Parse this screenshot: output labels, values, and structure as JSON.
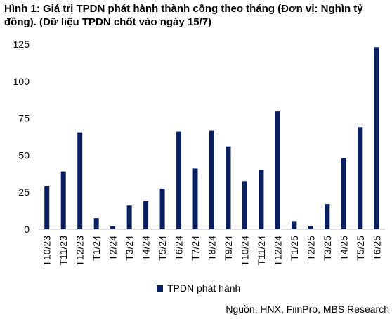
{
  "title": "Hình 1: Giá trị TPDN phát hành thành công theo tháng (Đơn vị: Nghìn tỷ đồng). (Dữ liệu TPDN chốt vào ngày 15/7)",
  "source": "Nguồn: HNX, FiinPro, MBS Research",
  "colors": {
    "bar": "#0b1f60",
    "axis": "#bfbfbf"
  },
  "chart_data": {
    "type": "bar",
    "categories": [
      "T10/23",
      "T11/23",
      "T12/23",
      "T1/24",
      "T2/24",
      "T3/24",
      "T4/24",
      "T5/24",
      "T6/24",
      "T7/24",
      "T8/24",
      "T9/24",
      "T10/24",
      "T11/24",
      "T12/24",
      "T1/25",
      "T2/25",
      "T3/25",
      "T4/25",
      "T5/25",
      "T6/25"
    ],
    "series": [
      {
        "name": "TPDN phát hành",
        "values": [
          29,
          39,
          65.5,
          7.5,
          2,
          16,
          19,
          27.5,
          66,
          41,
          66.5,
          56,
          32.5,
          40,
          79.5,
          5.5,
          2,
          17,
          48,
          69,
          123
        ]
      }
    ],
    "ylim": [
      0,
      125
    ],
    "yticks": [
      0,
      25,
      50,
      75,
      100,
      125
    ],
    "grid": false,
    "legend": "bottom-center"
  }
}
